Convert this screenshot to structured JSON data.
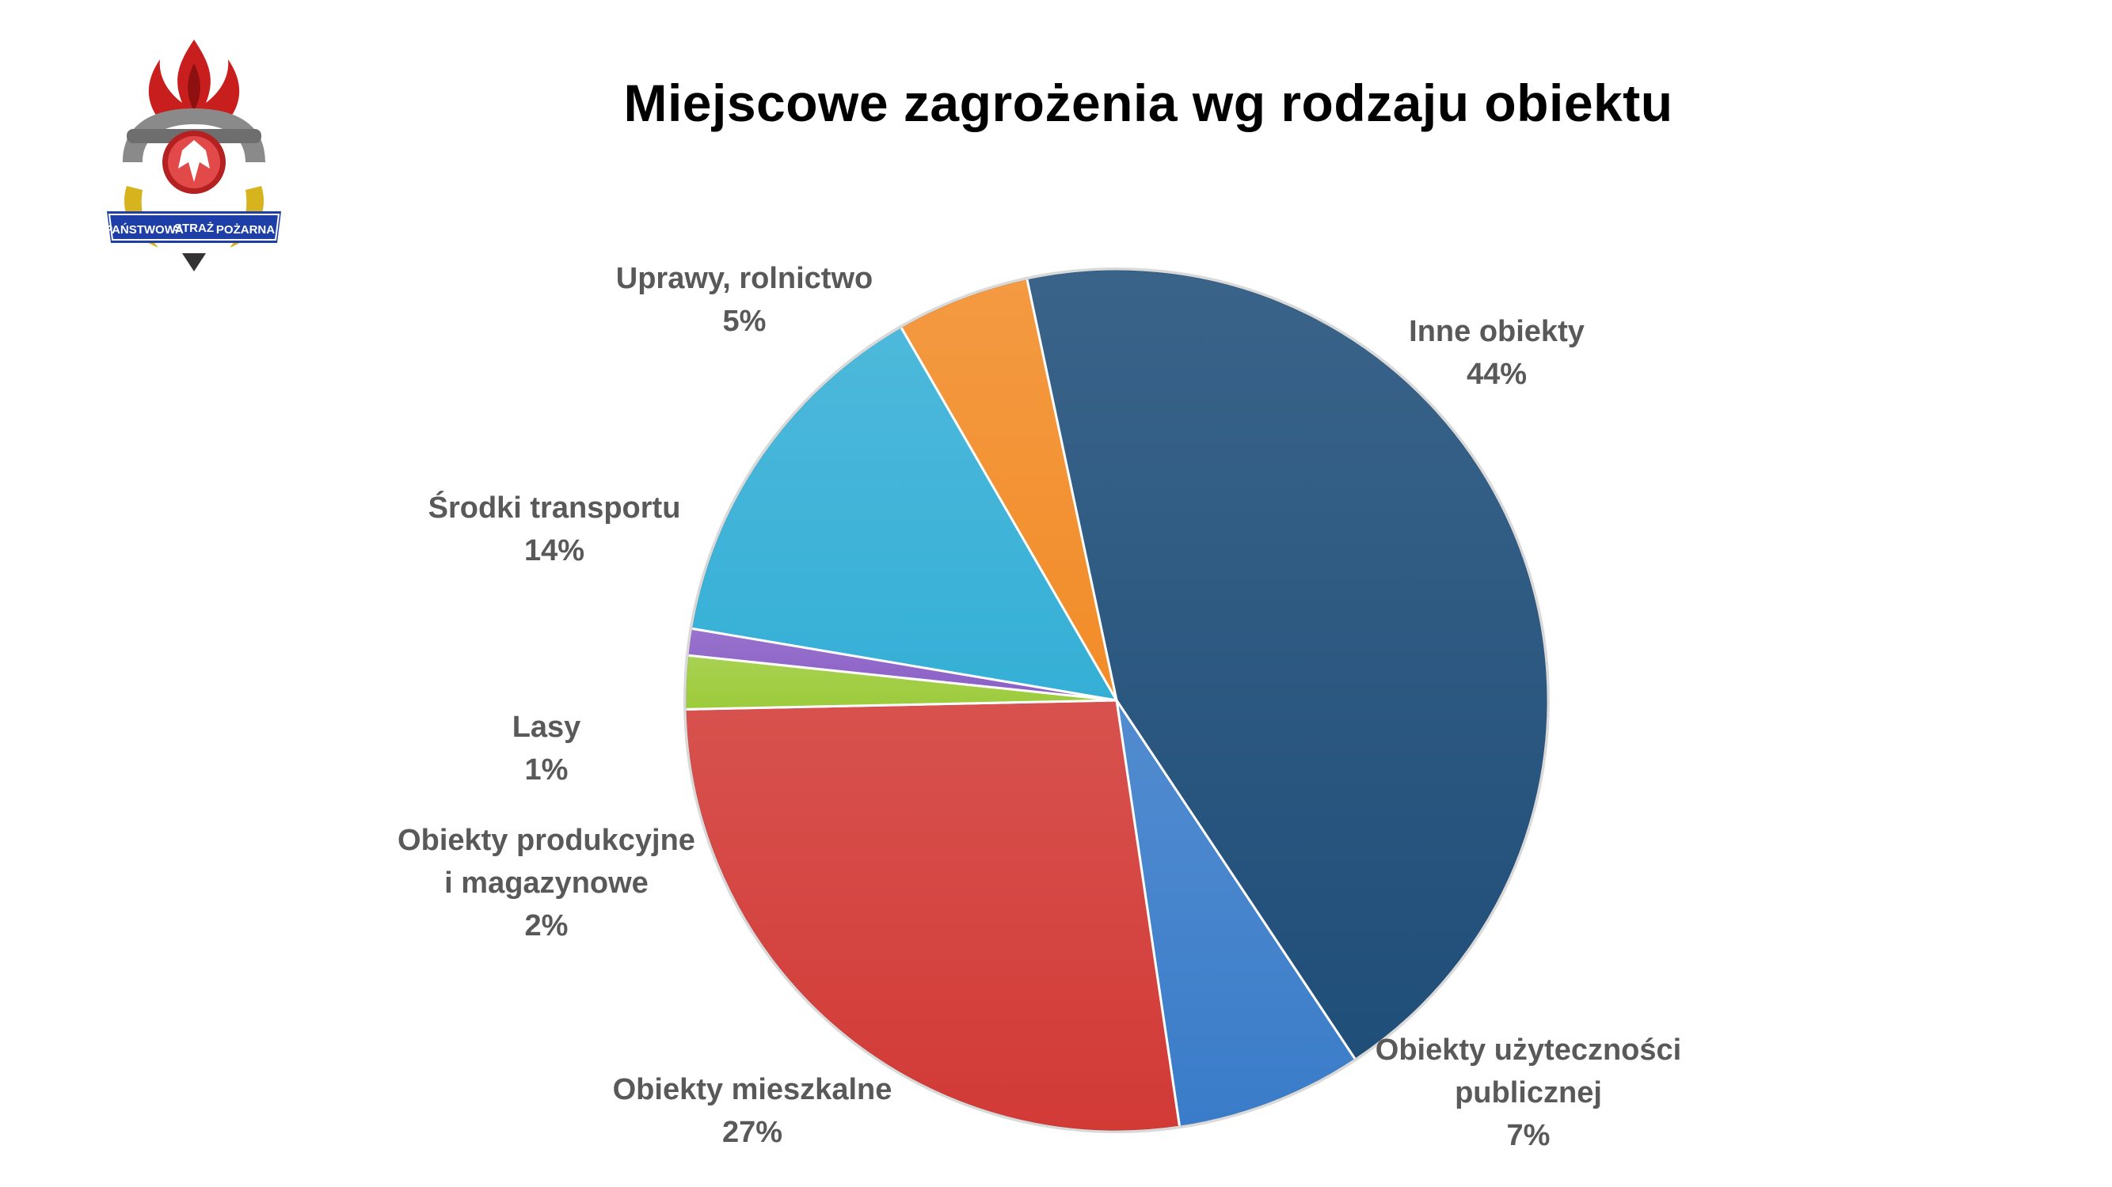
{
  "slide": {
    "title": "Miejscowe zagrożenia wg rodzaju obiektu",
    "logo": {
      "icon": "fire-service-emblem-icon",
      "text_top_left": "PAŃSTWOWA",
      "text_top_mid": "STRAŻ",
      "text_top_right": "POŻARNA"
    }
  },
  "chart_data": {
    "type": "pie",
    "title": "Miejscowe zagrożenia wg rodzaju obiektu",
    "slices": [
      {
        "name": "Inne obiekty",
        "label_lines": [
          "Inne obiekty"
        ],
        "percent_label": "44%",
        "value": 44,
        "color": "#1F4E79"
      },
      {
        "name": "Obiekty użyteczności publicznej",
        "label_lines": [
          "Obiekty użyteczności",
          "publicznej"
        ],
        "percent_label": "7%",
        "value": 7,
        "color": "#3A7CC9"
      },
      {
        "name": "Obiekty mieszkalne",
        "label_lines": [
          "Obiekty mieszkalne"
        ],
        "percent_label": "27%",
        "value": 27,
        "color": "#D23A36"
      },
      {
        "name": "Obiekty produkcyjne i magazynowe",
        "label_lines": [
          "Obiekty produkcyjne",
          "i magazynowe"
        ],
        "percent_label": "2%",
        "value": 2,
        "color": "#9CCB3B"
      },
      {
        "name": "Lasy",
        "label_lines": [
          "Lasy"
        ],
        "percent_label": "1%",
        "value": 1,
        "color": "#8A5FC6"
      },
      {
        "name": "Środki transportu",
        "label_lines": [
          "Środki transportu"
        ],
        "percent_label": "14%",
        "value": 14,
        "color": "#35AFD6"
      },
      {
        "name": "Uprawy, rolnictwo",
        "label_lines": [
          "Uprawy, rolnictwo"
        ],
        "percent_label": "5%",
        "value": 5,
        "color": "#F28C28"
      }
    ],
    "legend": "none",
    "labels": "outside"
  }
}
